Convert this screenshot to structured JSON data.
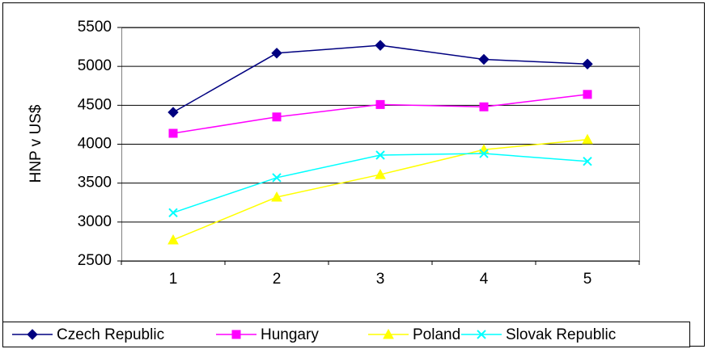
{
  "chart_data": {
    "type": "line",
    "y_axis_label": "HNP v US$",
    "categories": [
      "1",
      "2",
      "3",
      "4",
      "5"
    ],
    "series": [
      {
        "name": "Czech Republic",
        "color": "#000080",
        "values": [
          4410,
          5170,
          5270,
          5090,
          5030
        ]
      },
      {
        "name": "Hungary",
        "color": "#ff00ff",
        "values": [
          4140,
          4350,
          4510,
          4480,
          4640
        ]
      },
      {
        "name": "Poland",
        "color": "#ffff00",
        "values": [
          2770,
          3320,
          3610,
          3930,
          4060
        ]
      },
      {
        "name": "Slovak Republic",
        "color": "#00ffff",
        "values": [
          3120,
          3570,
          3860,
          3880,
          3780
        ]
      }
    ],
    "ylim": [
      2500,
      5500
    ],
    "yticks": [
      2500,
      3000,
      3500,
      4000,
      4500,
      5000,
      5500
    ],
    "grid": true,
    "legend": "bottom"
  }
}
